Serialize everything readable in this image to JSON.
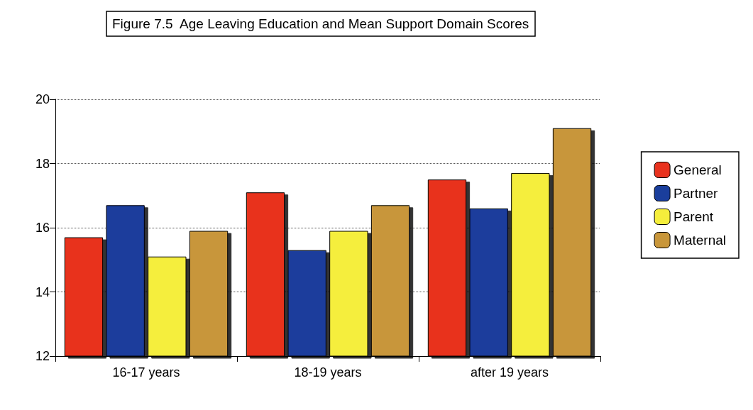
{
  "chart_data": {
    "type": "bar",
    "title": "Figure 7.5  Age Leaving Education and Mean Support Domain Scores",
    "categories": [
      "16-17 years",
      "18-19 years",
      "after 19 years"
    ],
    "series": [
      {
        "name": "General",
        "color": "#e8321e",
        "values": [
          15.7,
          17.1,
          17.5
        ]
      },
      {
        "name": "Partner",
        "color": "#1a3e9c",
        "values": [
          16.7,
          15.3,
          16.6
        ]
      },
      {
        "name": "Parent",
        "color": "#f5ee3c",
        "values": [
          15.1,
          15.9,
          17.7
        ]
      },
      {
        "name": "Maternal",
        "color": "#c8963a",
        "values": [
          15.9,
          16.7,
          19.1
        ]
      }
    ],
    "ylim": [
      12,
      20
    ],
    "yticks": [
      12,
      14,
      16,
      18,
      20
    ],
    "grid": "y",
    "legend": "right"
  }
}
